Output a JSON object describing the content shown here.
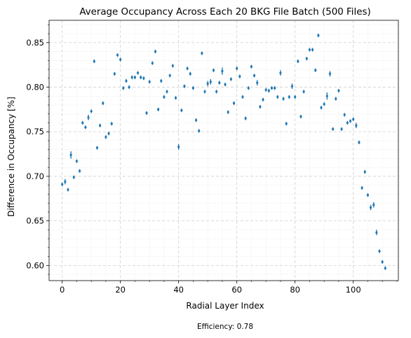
{
  "chart_data": {
    "type": "scatter",
    "title": "Average Occupancy Across Each 20 BKG File Batch (500 Files)",
    "xlabel": "Radial Layer Index",
    "ylabel": "Difference in Occupancy [%]",
    "footnote": "Efficiency: 0.78",
    "xlim": [
      -4.5,
      115.5
    ],
    "ylim": [
      0.583,
      0.875
    ],
    "xticks": [
      0,
      20,
      40,
      60,
      80,
      100
    ],
    "yticks": [
      0.6,
      0.65,
      0.7,
      0.75,
      0.8,
      0.85
    ],
    "x_tick_labels": [
      "0",
      "20",
      "40",
      "60",
      "80",
      "100"
    ],
    "y_tick_labels": [
      "0.60",
      "0.65",
      "0.70",
      "0.75",
      "0.80",
      "0.85"
    ],
    "grid": true,
    "error_bars": true,
    "series": [
      {
        "color": "#1f77b4",
        "x": [
          0,
          1,
          2,
          3,
          4,
          5,
          6,
          7,
          8,
          9,
          10,
          11,
          12,
          13,
          14,
          15,
          16,
          17,
          18,
          19,
          20,
          21,
          22,
          23,
          24,
          25,
          26,
          27,
          28,
          29,
          30,
          31,
          32,
          33,
          34,
          35,
          36,
          37,
          38,
          39,
          40,
          41,
          42,
          43,
          44,
          45,
          46,
          47,
          48,
          49,
          50,
          51,
          52,
          53,
          54,
          55,
          56,
          57,
          58,
          59,
          60,
          61,
          62,
          63,
          64,
          65,
          66,
          67,
          68,
          69,
          70,
          71,
          72,
          73,
          74,
          75,
          76,
          77,
          78,
          79,
          80,
          81,
          82,
          83,
          84,
          85,
          86,
          87,
          88,
          89,
          90,
          91,
          92,
          93,
          94,
          95,
          96,
          97,
          98,
          99,
          100,
          101,
          102,
          103,
          104,
          105,
          106,
          107,
          108,
          109,
          110,
          111
        ],
        "y": [
          0.691,
          0.694,
          0.685,
          0.724,
          0.699,
          0.717,
          0.706,
          0.76,
          0.755,
          0.766,
          0.773,
          0.829,
          0.732,
          0.757,
          0.782,
          0.744,
          0.748,
          0.759,
          0.815,
          0.836,
          0.831,
          0.799,
          0.807,
          0.8,
          0.811,
          0.811,
          0.816,
          0.811,
          0.81,
          0.771,
          0.806,
          0.827,
          0.84,
          0.775,
          0.807,
          0.789,
          0.795,
          0.813,
          0.824,
          0.788,
          0.733,
          0.774,
          0.801,
          0.821,
          0.815,
          0.799,
          0.763,
          0.751,
          0.838,
          0.795,
          0.804,
          0.806,
          0.819,
          0.795,
          0.805,
          0.818,
          0.803,
          0.772,
          0.809,
          0.782,
          0.821,
          0.812,
          0.789,
          0.765,
          0.799,
          0.823,
          0.813,
          0.805,
          0.778,
          0.786,
          0.797,
          0.796,
          0.799,
          0.799,
          0.789,
          0.816,
          0.787,
          0.759,
          0.789,
          0.801,
          0.789,
          0.829,
          0.767,
          0.795,
          0.832,
          0.842,
          0.842,
          0.819,
          0.858,
          0.777,
          0.781,
          0.79,
          0.815,
          0.753,
          0.787,
          0.796,
          0.753,
          0.769,
          0.76,
          0.762,
          0.764,
          0.757,
          0.738,
          0.687,
          0.705,
          0.679,
          0.665,
          0.668,
          0.637,
          0.616,
          0.604,
          0.597
        ],
        "err": [
          0.002,
          0.003,
          0.002,
          0.004,
          0.002,
          0.002,
          0.002,
          0.002,
          0.002,
          0.003,
          0.002,
          0.002,
          0.002,
          0.002,
          0.002,
          0.002,
          0.002,
          0.002,
          0.002,
          0.002,
          0.002,
          0.002,
          0.002,
          0.002,
          0.002,
          0.002,
          0.002,
          0.002,
          0.002,
          0.002,
          0.002,
          0.002,
          0.002,
          0.002,
          0.002,
          0.002,
          0.002,
          0.002,
          0.002,
          0.002,
          0.003,
          0.002,
          0.002,
          0.002,
          0.002,
          0.002,
          0.002,
          0.002,
          0.002,
          0.002,
          0.003,
          0.003,
          0.002,
          0.002,
          0.002,
          0.004,
          0.002,
          0.002,
          0.002,
          0.002,
          0.002,
          0.002,
          0.002,
          0.002,
          0.002,
          0.002,
          0.002,
          0.003,
          0.002,
          0.002,
          0.002,
          0.002,
          0.002,
          0.002,
          0.002,
          0.003,
          0.002,
          0.002,
          0.002,
          0.003,
          0.002,
          0.002,
          0.002,
          0.002,
          0.002,
          0.002,
          0.002,
          0.002,
          0.002,
          0.002,
          0.002,
          0.004,
          0.003,
          0.002,
          0.002,
          0.002,
          0.002,
          0.002,
          0.002,
          0.002,
          0.002,
          0.003,
          0.002,
          0.002,
          0.002,
          0.002,
          0.003,
          0.003,
          0.003,
          0.002,
          0.002,
          0.002
        ]
      }
    ]
  }
}
